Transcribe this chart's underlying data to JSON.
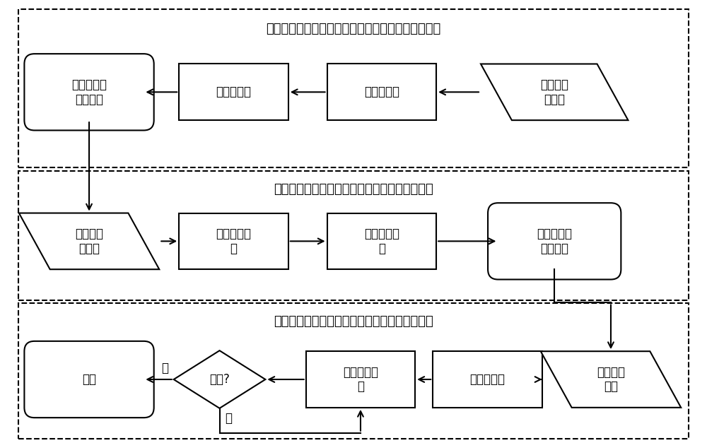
{
  "title1": "基于等几何的变刚度复合材料板壳结构屈曲设计模型",
  "title2": "基于等几何的变刚度复合材料板壳结构屈曲分析",
  "title3": "基于解析灵敏度的变刚度复合材料板壳高效优化",
  "box1_label": "等几何屈曲\n设计模型",
  "box2_label": "收敛性分析",
  "box3_label": "生成控制点",
  "box4_label": "纤维路径\n参数化",
  "box5_label": "读取等几\n何数据",
  "box6_label": "组装刚度矩\n阵",
  "box7_label": "求解平衡方\n程",
  "box8_label": "输出屈曲载\n荷与模态",
  "box9_label": "结束",
  "box10_label": "收敛?",
  "box11_label": "设置约束函\n数",
  "box12_label": "解析灵敏度",
  "box13_label": "构造优化\n模型",
  "yes_label": "是",
  "no_label": "否",
  "bg_color": "#ffffff",
  "box_edge_color": "#000000",
  "arrow_color": "#000000",
  "dashed_rect_color": "#000000",
  "text_color": "#000000",
  "font_size": 12,
  "title_font_size": 13,
  "lw": 1.5
}
